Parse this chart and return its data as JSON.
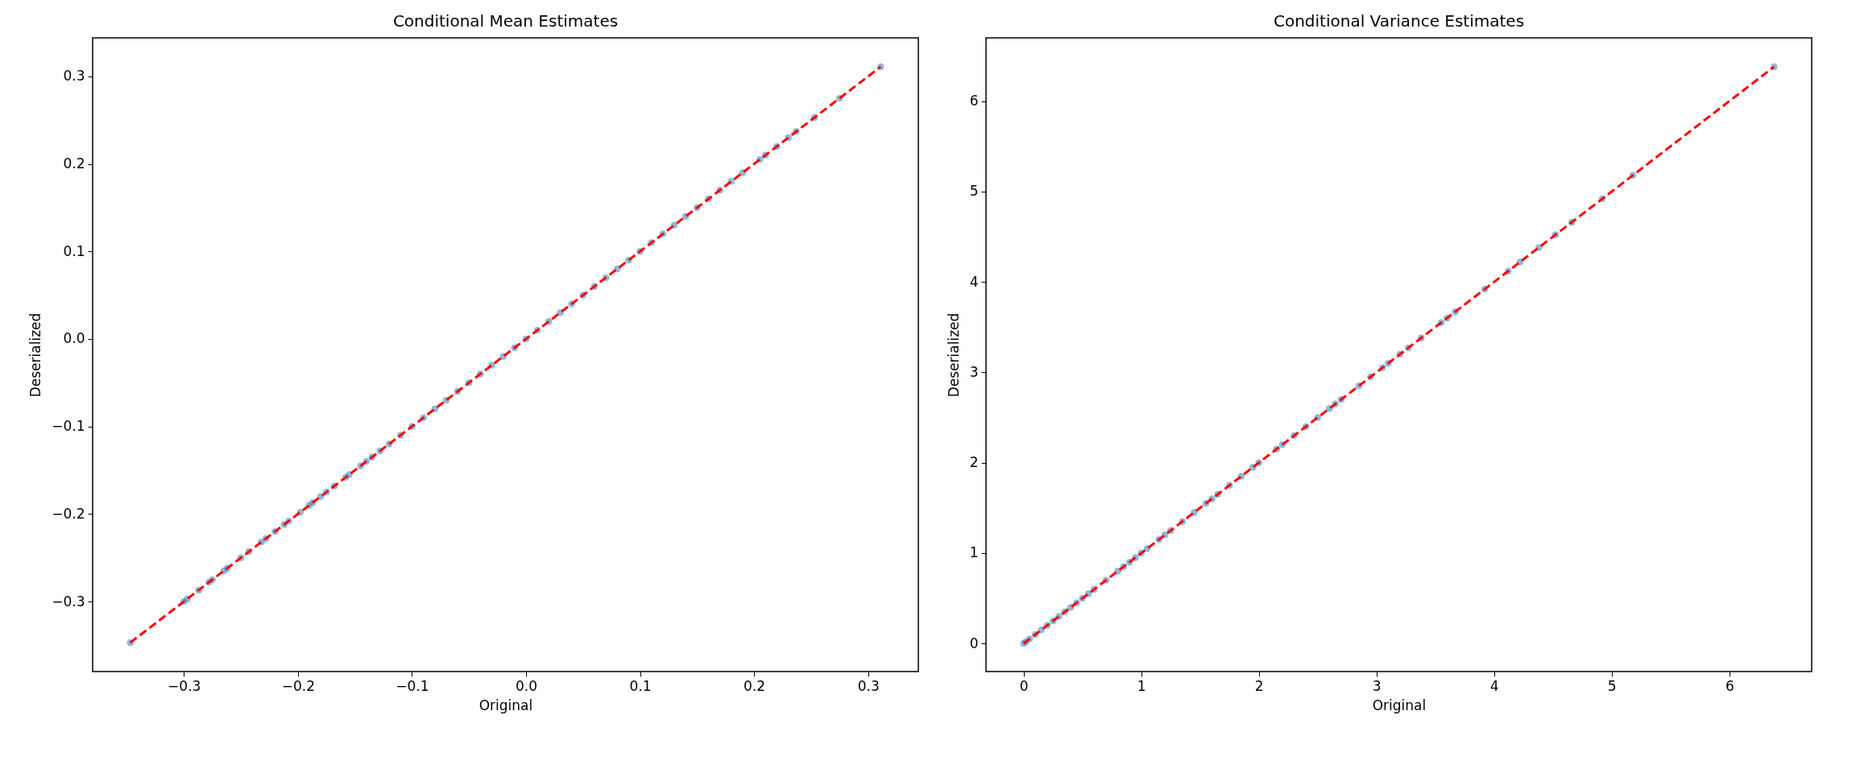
{
  "chart_data": [
    {
      "type": "scatter",
      "title": "Conditional Mean Estimates",
      "xlabel": "Original",
      "ylabel": "Deserialized",
      "xlim": [
        -0.38,
        0.344
      ],
      "ylim": [
        -0.38,
        0.344
      ],
      "xticks": [
        {
          "value": -0.3,
          "label": "−0.3"
        },
        {
          "value": -0.2,
          "label": "−0.2"
        },
        {
          "value": -0.1,
          "label": "−0.1"
        },
        {
          "value": 0,
          "label": "0.0"
        },
        0.1,
        0.2,
        0.3
      ],
      "yticks": [
        {
          "value": -0.3,
          "label": "−0.3"
        },
        {
          "value": -0.2,
          "label": "−0.2"
        },
        {
          "value": -0.1,
          "label": "−0.1"
        },
        {
          "value": 0,
          "label": "0.0"
        },
        0.1,
        0.2,
        0.3
      ],
      "grid": false,
      "series": [
        {
          "marker": "circle",
          "color": "#1f77b4",
          "x": [
            -0.347,
            -0.3,
            -0.297,
            -0.287,
            -0.278,
            -0.275,
            -0.265,
            -0.262,
            -0.25,
            -0.243,
            -0.232,
            -0.228,
            -0.22,
            -0.212,
            -0.208,
            -0.198,
            -0.19,
            -0.187,
            -0.18,
            -0.175,
            -0.168,
            -0.158,
            -0.155,
            -0.145,
            -0.14,
            -0.135,
            -0.128,
            -0.12,
            -0.11,
            -0.1,
            -0.09,
            -0.08,
            -0.07,
            -0.06,
            -0.05,
            -0.04,
            -0.03,
            -0.02,
            -0.01,
            0,
            0.01,
            0.02,
            0.03,
            0.04,
            0.05,
            0.06,
            0.07,
            0.08,
            0.09,
            0.1,
            0.11,
            0.12,
            0.13,
            0.14,
            0.15,
            0.16,
            0.17,
            0.18,
            0.19,
            0.205,
            0.21,
            0.22,
            0.23,
            0.237,
            0.253,
            0.275,
            0.311
          ],
          "values": [
            -0.347,
            -0.3,
            -0.297,
            -0.287,
            -0.278,
            -0.275,
            -0.265,
            -0.262,
            -0.25,
            -0.243,
            -0.232,
            -0.228,
            -0.22,
            -0.212,
            -0.208,
            -0.198,
            -0.19,
            -0.187,
            -0.18,
            -0.175,
            -0.168,
            -0.158,
            -0.155,
            -0.145,
            -0.14,
            -0.135,
            -0.128,
            -0.12,
            -0.11,
            -0.1,
            -0.09,
            -0.08,
            -0.07,
            -0.06,
            -0.05,
            -0.04,
            -0.03,
            -0.02,
            -0.01,
            0,
            0.01,
            0.02,
            0.03,
            0.04,
            0.05,
            0.06,
            0.07,
            0.08,
            0.09,
            0.1,
            0.11,
            0.12,
            0.13,
            0.14,
            0.15,
            0.16,
            0.17,
            0.18,
            0.19,
            0.205,
            0.21,
            0.22,
            0.23,
            0.237,
            0.253,
            0.275,
            0.311
          ]
        },
        {
          "type": "line",
          "color": "#ff0000",
          "line_style": "dashed",
          "x": [
            -0.347,
            0.311
          ],
          "values": [
            -0.347,
            0.311
          ]
        }
      ]
    },
    {
      "type": "scatter",
      "title": "Conditional Variance Estimates",
      "xlabel": "Original",
      "ylabel": "Deserialized",
      "xlim": [
        -0.32,
        6.7
      ],
      "ylim": [
        -0.31,
        6.7
      ],
      "xticks": [
        0,
        1,
        2,
        3,
        4,
        5,
        6
      ],
      "yticks": [
        0,
        1,
        2,
        3,
        4,
        5,
        6
      ],
      "grid": false,
      "series": [
        {
          "marker": "circle",
          "color": "#1f77b4",
          "x": [
            0,
            0.02,
            0.05,
            0.1,
            0.15,
            0.2,
            0.25,
            0.3,
            0.35,
            0.4,
            0.45,
            0.5,
            0.55,
            0.6,
            0.7,
            0.8,
            0.85,
            0.9,
            0.95,
            1.0,
            1.05,
            1.15,
            1.2,
            1.25,
            1.35,
            1.45,
            1.55,
            1.6,
            1.65,
            1.75,
            1.85,
            1.95,
            2.0,
            2.15,
            2.2,
            2.3,
            2.4,
            2.5,
            2.6,
            2.65,
            2.7,
            2.85,
            2.95,
            3.05,
            3.1,
            3.2,
            3.27,
            3.38,
            3.55,
            3.6,
            3.67,
            3.92,
            4.12,
            4.22,
            4.38,
            4.52,
            4.66,
            4.92,
            5.18,
            6.38
          ],
          "values": [
            0,
            0.02,
            0.05,
            0.1,
            0.15,
            0.2,
            0.25,
            0.3,
            0.35,
            0.4,
            0.45,
            0.5,
            0.55,
            0.6,
            0.7,
            0.8,
            0.85,
            0.9,
            0.95,
            1.0,
            1.05,
            1.15,
            1.2,
            1.25,
            1.35,
            1.45,
            1.55,
            1.6,
            1.65,
            1.75,
            1.85,
            1.95,
            2.0,
            2.15,
            2.2,
            2.3,
            2.4,
            2.5,
            2.6,
            2.65,
            2.7,
            2.85,
            2.95,
            3.05,
            3.1,
            3.2,
            3.27,
            3.38,
            3.55,
            3.6,
            3.67,
            3.92,
            4.12,
            4.22,
            4.38,
            4.52,
            4.66,
            4.92,
            5.18,
            6.38
          ]
        },
        {
          "type": "line",
          "color": "#ff0000",
          "line_style": "dashed",
          "x": [
            0,
            6.38
          ],
          "values": [
            0,
            6.38
          ]
        }
      ]
    }
  ]
}
